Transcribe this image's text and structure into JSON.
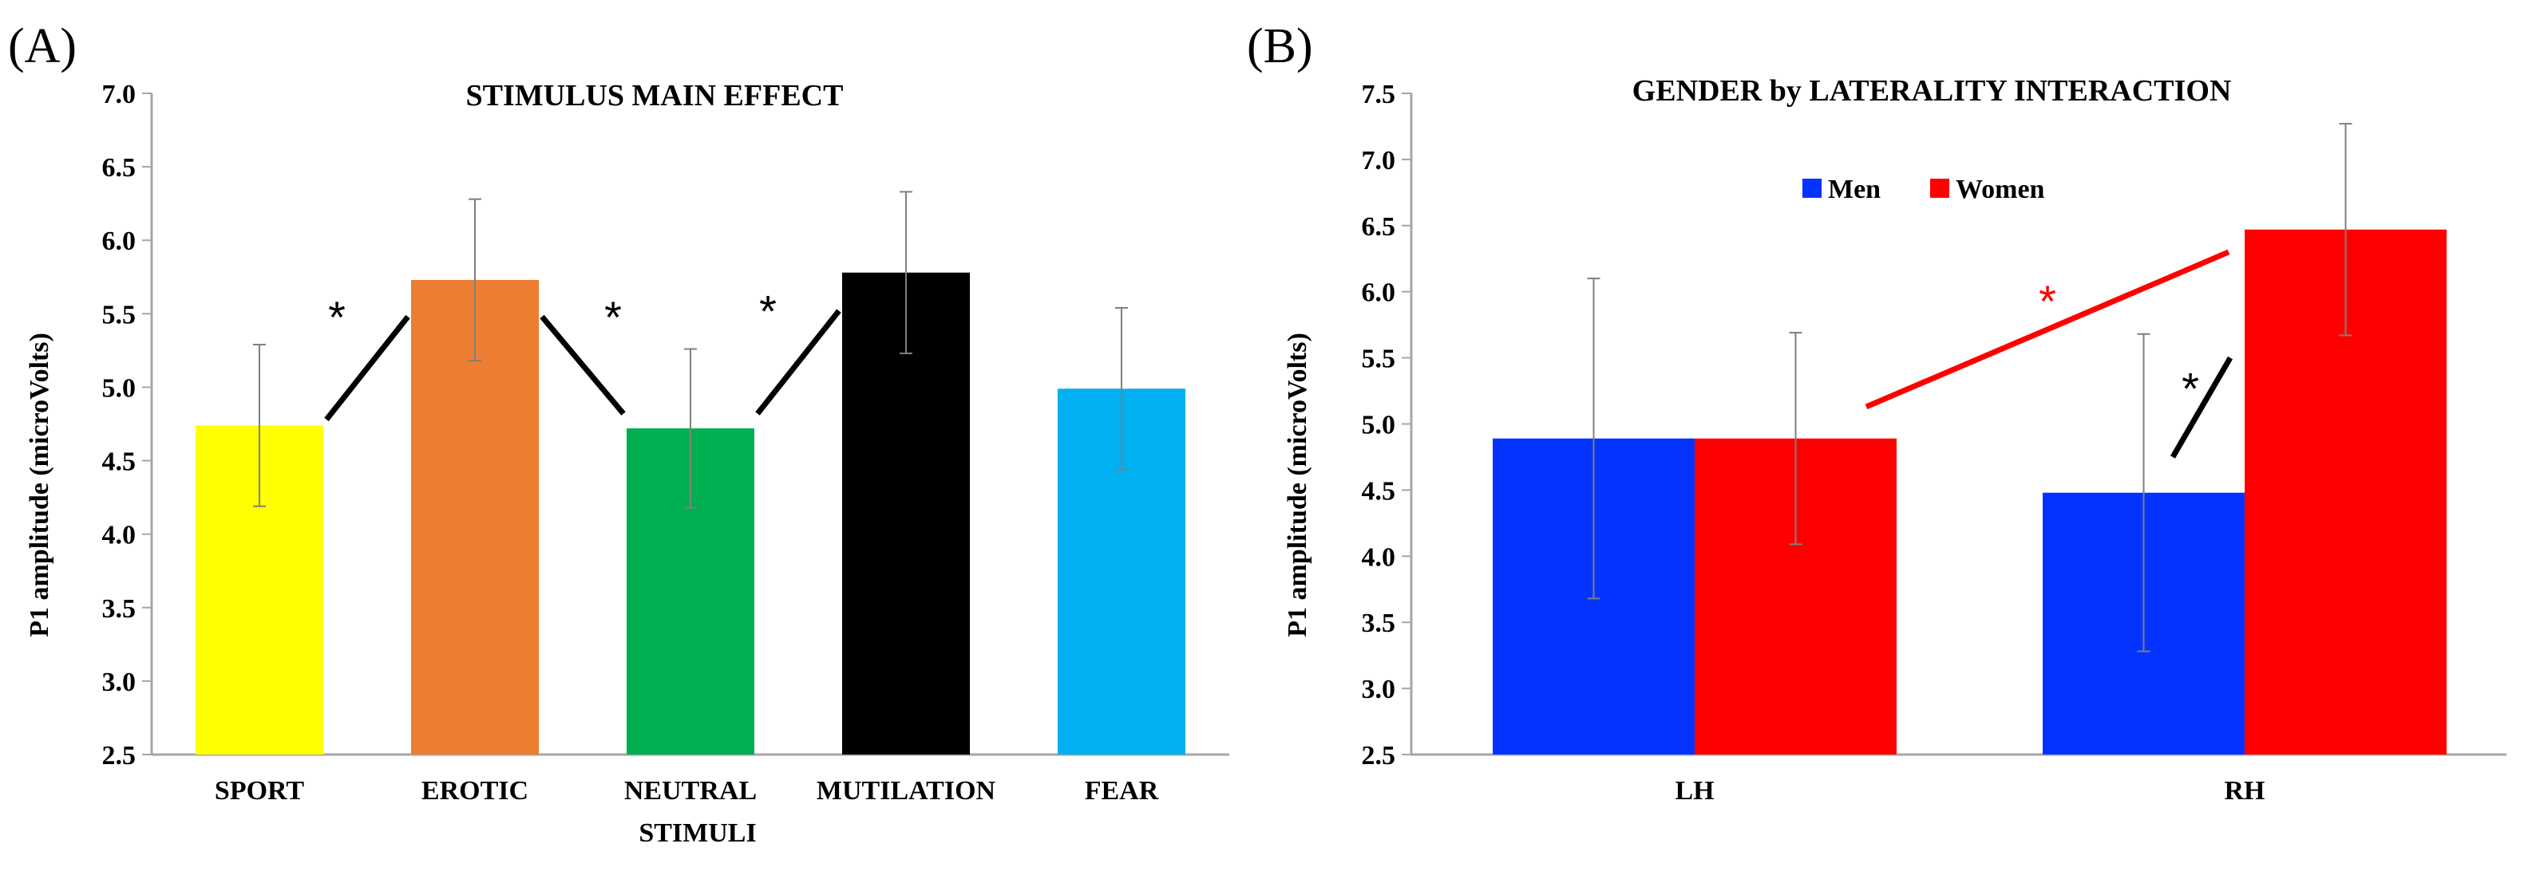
{
  "chart_data": [
    {
      "panel_label": "(A)",
      "type": "bar",
      "title": "STIMULUS MAIN EFFECT",
      "xlabel": "STIMULI",
      "ylabel": "P1 amplitude  (microVolts)",
      "ylim": [
        2.5,
        7.0
      ],
      "yticks": [
        "2.5",
        "3.0",
        "3.5",
        "4.0",
        "4.5",
        "5.0",
        "5.5",
        "6.0",
        "6.5",
        "7.0"
      ],
      "grid": false,
      "categories": [
        "SPORT",
        "EROTIC",
        "NEUTRAL",
        "MUTILATION",
        "FEAR"
      ],
      "values": [
        4.74,
        5.73,
        4.72,
        5.78,
        4.99
      ],
      "errors": [
        0.55,
        0.55,
        0.54,
        0.55,
        0.55
      ],
      "colors": [
        "#ffff00",
        "#ed7d31",
        "#00b050",
        "#000000",
        "#00b0f0"
      ],
      "annotations": [
        {
          "text": "*",
          "between": [
            "SPORT",
            "EROTIC"
          ],
          "from": 4.78,
          "to": 5.48,
          "color": "#000000"
        },
        {
          "text": "*",
          "between": [
            "EROTIC",
            "NEUTRAL"
          ],
          "from": 5.48,
          "to": 4.82,
          "color": "#000000"
        },
        {
          "text": "*",
          "between": [
            "NEUTRAL",
            "MUTILATION"
          ],
          "from": 4.82,
          "to": 5.52,
          "color": "#000000"
        }
      ]
    },
    {
      "panel_label": "(B)",
      "type": "bar",
      "title": "GENDER by LATERALITY  INTERACTION",
      "xlabel": "",
      "ylabel": "P1 amplitude  (microVolts)",
      "ylim": [
        2.5,
        7.5
      ],
      "yticks": [
        "2.5",
        "3.0",
        "3.5",
        "4.0",
        "4.5",
        "5.0",
        "5.5",
        "6.0",
        "6.5",
        "7.0",
        "7.5"
      ],
      "grid": false,
      "legend_position": "top-center",
      "categories": [
        "LH",
        "RH"
      ],
      "series": [
        {
          "name": "Men",
          "color": "#0433ff",
          "values": [
            4.89,
            4.48
          ],
          "errors": [
            1.21,
            1.2
          ]
        },
        {
          "name": "Women",
          "color": "#ff0000",
          "values": [
            4.89,
            6.47
          ],
          "errors": [
            0.8,
            0.8
          ]
        }
      ],
      "annotations": [
        {
          "text": "*",
          "between": [
            "LH Women",
            "RH Women"
          ],
          "from": 5.13,
          "to": 6.3,
          "color": "#ff0000"
        },
        {
          "text": "*",
          "between": [
            "RH Men",
            "RH Women"
          ],
          "from": 4.75,
          "to": 5.5,
          "color": "#000000"
        }
      ]
    }
  ]
}
